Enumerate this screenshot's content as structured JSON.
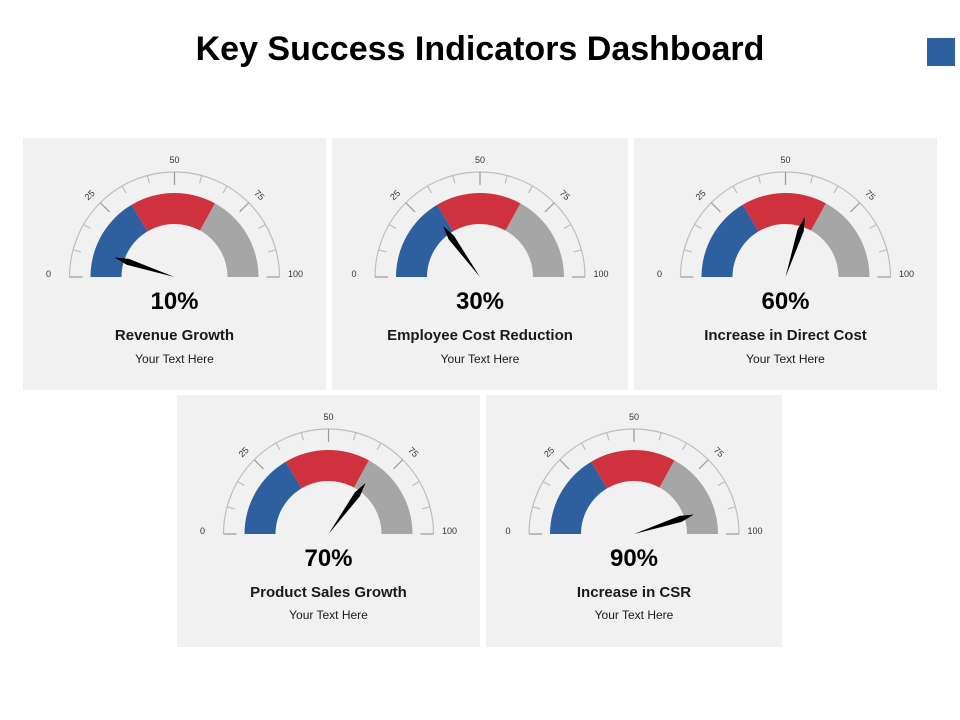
{
  "title": "Key Success Indicators Dashboard",
  "colors": {
    "accent": "#2e5f9e",
    "low": "#2e5f9e",
    "mid": "#d0313f",
    "high": "#a6a6a6",
    "card": "#f1f1f1",
    "needle": "#000000",
    "tick": "#bdbdbd"
  },
  "chart_data": [
    {
      "type": "gauge",
      "min": 0,
      "max": 100,
      "tick_labels": [
        "0",
        "25",
        "50",
        "75",
        "100"
      ],
      "bands": [
        [
          0,
          33
        ],
        [
          33,
          66
        ],
        [
          66,
          100
        ]
      ],
      "value": 10,
      "value_label": "10%",
      "label": "Revenue Growth",
      "subtext": "Your Text Here"
    },
    {
      "type": "gauge",
      "min": 0,
      "max": 100,
      "tick_labels": [
        "0",
        "25",
        "50",
        "75",
        "100"
      ],
      "bands": [
        [
          0,
          33
        ],
        [
          33,
          66
        ],
        [
          66,
          100
        ]
      ],
      "value": 30,
      "value_label": "30%",
      "label": "Employee Cost Reduction",
      "subtext": "Your Text Here"
    },
    {
      "type": "gauge",
      "min": 0,
      "max": 100,
      "tick_labels": [
        "0",
        "25",
        "50",
        "75",
        "100"
      ],
      "bands": [
        [
          0,
          33
        ],
        [
          33,
          66
        ],
        [
          66,
          100
        ]
      ],
      "value": 60,
      "value_label": "60%",
      "label": "Increase in Direct Cost",
      "subtext": "Your Text Here"
    },
    {
      "type": "gauge",
      "min": 0,
      "max": 100,
      "tick_labels": [
        "0",
        "25",
        "50",
        "75",
        "100"
      ],
      "bands": [
        [
          0,
          33
        ],
        [
          33,
          66
        ],
        [
          66,
          100
        ]
      ],
      "value": 70,
      "value_label": "70%",
      "label": "Product Sales Growth",
      "subtext": "Your Text Here"
    },
    {
      "type": "gauge",
      "min": 0,
      "max": 100,
      "tick_labels": [
        "0",
        "25",
        "50",
        "75",
        "100"
      ],
      "bands": [
        [
          0,
          33
        ],
        [
          33,
          66
        ],
        [
          66,
          100
        ]
      ],
      "value": 90,
      "value_label": "90%",
      "label": "Increase in CSR",
      "subtext": "Your Text Here"
    }
  ]
}
